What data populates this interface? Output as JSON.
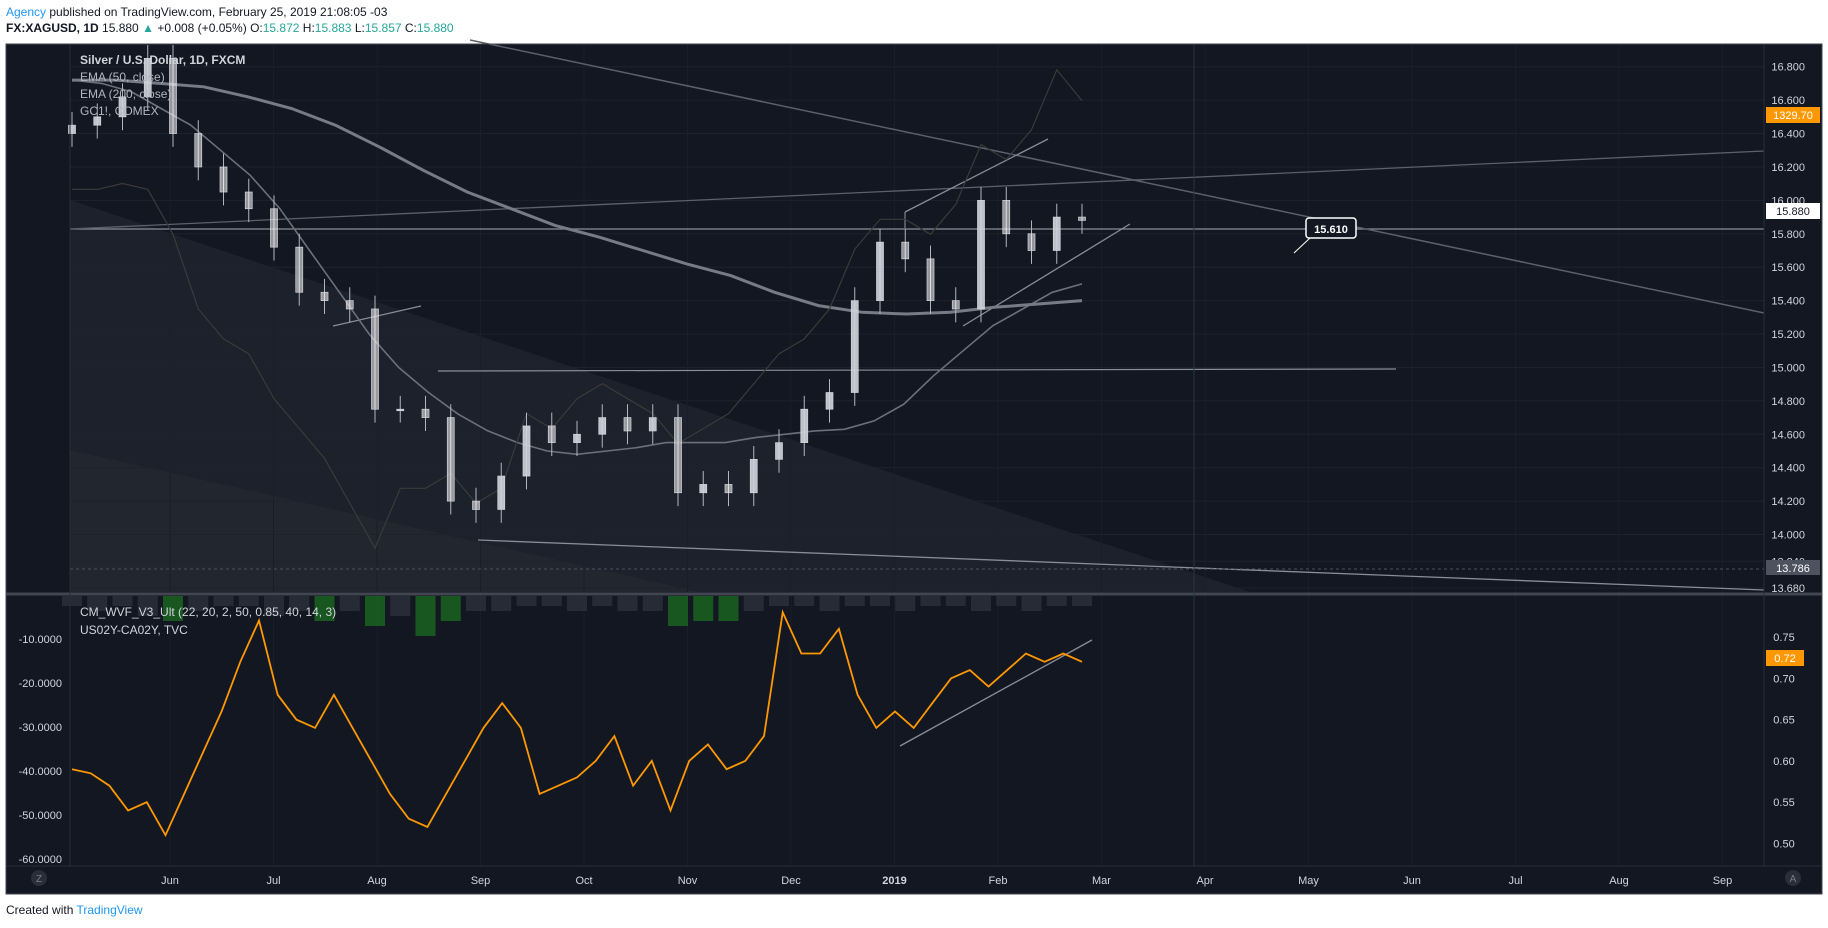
{
  "header": {
    "author": "Agency",
    "published": "published on TradingView.com, February 25, 2019 21:08:05 -03",
    "symbol": "FX:XAGUSD, 1D",
    "last": "15.880",
    "change_arrow": "▲",
    "change": "+0.008 (+0.05%)",
    "o_label": "O:",
    "o": "15.872",
    "h_label": "H:",
    "h": "15.883",
    "l_label": "L:",
    "l": "15.857",
    "c_label": "C:",
    "c": "15.880"
  },
  "legend": {
    "title": "Silver / U.S. Dollar, 1D, FXCM",
    "ema50": "EMA (50, close)",
    "ema200": "EMA (200, close)",
    "gc": "GC1!, COMEX",
    "wvf": "CM_WVF_V3_Ult (22, 20, 2, 50, 0.85, 40, 14, 3)",
    "spread": "US02Y-CA02Y, TVC"
  },
  "annotation": "15.610",
  "price_badges": {
    "gold": "1329.70",
    "last": "15.880",
    "low": "13.786"
  },
  "lower_badge": "0.72",
  "footer": {
    "created": "Created with",
    "brand": "TradingView"
  },
  "corner": {
    "left": "Z",
    "right": "A"
  },
  "colors": {
    "bg": "#131722",
    "orange": "#ff9800",
    "candle": "#d1d4dc",
    "white": "#ffffff"
  },
  "chart_data": [
    {
      "type": "candlestick",
      "title": "Silver / U.S. Dollar, 1D, FXCM",
      "yticks": [
        "16.800",
        "16.600",
        "16.400",
        "16.200",
        "16.000",
        "15.800",
        "15.600",
        "15.400",
        "15.200",
        "15.000",
        "14.800",
        "14.600",
        "14.400",
        "14.200",
        "14.000",
        "13.840",
        "13.680"
      ],
      "xticks": [
        "Jun",
        "Jul",
        "Aug",
        "Sep",
        "Oct",
        "Nov",
        "Dec",
        "2019",
        "Feb",
        "Mar",
        "Apr",
        "May",
        "Jun",
        "Jul",
        "Aug",
        "Sep"
      ],
      "ylim": [
        13.68,
        16.9
      ],
      "x": [
        "2018-05-24",
        "2018-05-31",
        "2018-06-07",
        "2018-06-14",
        "2018-06-21",
        "2018-06-28",
        "2018-07-05",
        "2018-07-12",
        "2018-07-19",
        "2018-07-26",
        "2018-08-02",
        "2018-08-09",
        "2018-08-16",
        "2018-08-23",
        "2018-08-30",
        "2018-09-06",
        "2018-09-13",
        "2018-09-20",
        "2018-09-27",
        "2018-10-04",
        "2018-10-11",
        "2018-10-18",
        "2018-10-25",
        "2018-11-01",
        "2018-11-08",
        "2018-11-15",
        "2018-11-22",
        "2018-11-29",
        "2018-12-06",
        "2018-12-13",
        "2018-12-20",
        "2018-12-27",
        "2019-01-03",
        "2019-01-10",
        "2019-01-17",
        "2019-01-24",
        "2019-01-31",
        "2019-02-07",
        "2019-02-14",
        "2019-02-21",
        "2019-02-25"
      ],
      "close": [
        16.45,
        16.5,
        16.62,
        16.85,
        16.4,
        16.2,
        16.05,
        15.95,
        15.72,
        15.45,
        15.4,
        15.35,
        14.75,
        14.75,
        14.7,
        14.2,
        14.15,
        14.35,
        14.65,
        14.55,
        14.6,
        14.7,
        14.62,
        14.7,
        14.25,
        14.3,
        14.25,
        14.45,
        14.55,
        14.75,
        14.85,
        15.4,
        15.75,
        15.65,
        15.4,
        15.35,
        16.0,
        15.8,
        15.7,
        15.9,
        15.88
      ],
      "series_lines": [
        {
          "name": "EMA (50, close)",
          "values": [
            16.72,
            16.7,
            16.65,
            16.55,
            16.45,
            16.3,
            16.15,
            15.95,
            15.7,
            15.45,
            15.2,
            15.0,
            14.85,
            14.72,
            14.62,
            14.55,
            14.5,
            14.48,
            14.5,
            14.52,
            14.55,
            14.55,
            14.55,
            14.58,
            14.6,
            14.62,
            14.63,
            14.68,
            14.78,
            14.95,
            15.1,
            15.25,
            15.35,
            15.45,
            15.5
          ]
        },
        {
          "name": "EMA (200, close)",
          "values": [
            16.72,
            16.72,
            16.7,
            16.68,
            16.62,
            16.55,
            16.45,
            16.32,
            16.18,
            16.05,
            15.95,
            15.85,
            15.78,
            15.7,
            15.62,
            15.55,
            15.45,
            15.37,
            15.33,
            15.32,
            15.33,
            15.36,
            15.38,
            15.4
          ]
        },
        {
          "name": "GC1!, COMEX",
          "values": [
            1300,
            1300,
            1302,
            1300,
            1285,
            1260,
            1250,
            1245,
            1230,
            1220,
            1210,
            1195,
            1180,
            1200,
            1200,
            1205,
            1195,
            1200,
            1225,
            1220,
            1230,
            1235,
            1230,
            1225,
            1215,
            1220,
            1225,
            1235,
            1245,
            1250,
            1260,
            1280,
            1290,
            1290,
            1285,
            1295,
            1315,
            1310,
            1320,
            1340,
            1329.7
          ]
        }
      ]
    },
    {
      "type": "line",
      "title": "US02Y-CA02Y, TVC",
      "yticks": [
        "0.75",
        "0.70",
        "0.65",
        "0.60",
        "0.55",
        "0.50"
      ],
      "left_yticks": [
        "-10.0000",
        "-20.0000",
        "-30.0000",
        "-40.0000",
        "-50.0000",
        "-60.0000"
      ],
      "ylim": [
        0.48,
        0.79
      ],
      "series": [
        {
          "name": "US02Y-CA02Y, TVC",
          "values": [
            0.59,
            0.585,
            0.57,
            0.54,
            0.55,
            0.51,
            0.56,
            0.61,
            0.66,
            0.72,
            0.77,
            0.68,
            0.65,
            0.64,
            0.68,
            0.64,
            0.6,
            0.56,
            0.53,
            0.52,
            0.56,
            0.6,
            0.64,
            0.67,
            0.64,
            0.56,
            0.57,
            0.58,
            0.6,
            0.63,
            0.57,
            0.6,
            0.54,
            0.6,
            0.62,
            0.59,
            0.6,
            0.63,
            0.78,
            0.73,
            0.73,
            0.76,
            0.68,
            0.64,
            0.66,
            0.64,
            0.67,
            0.7,
            0.71,
            0.69,
            0.71,
            0.73,
            0.72,
            0.73,
            0.72
          ]
        }
      ]
    },
    {
      "type": "bar",
      "title": "CM_WVF_V3_Ult (22, 20, 2, 50, 0.85, 40, 14, 3)",
      "values": [
        2,
        3,
        2,
        4,
        5,
        3,
        2,
        2,
        4,
        3,
        5,
        3,
        6,
        4,
        8,
        5,
        3,
        3,
        2,
        2,
        3,
        2,
        3,
        3,
        6,
        5,
        5,
        3,
        2,
        2,
        3,
        2,
        2,
        3,
        2,
        2,
        3,
        2,
        3,
        2,
        2
      ]
    }
  ]
}
